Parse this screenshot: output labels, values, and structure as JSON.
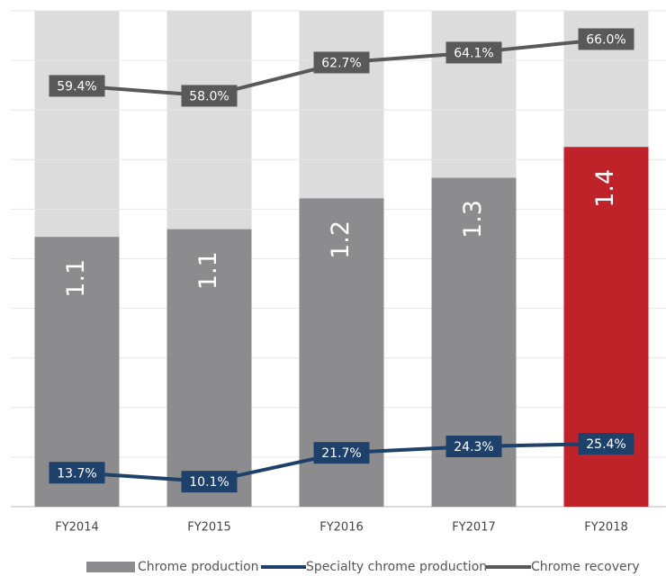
{
  "chart_data": {
    "type": "bar",
    "categories": [
      "FY2014",
      "FY2015",
      "FY2016",
      "FY2017",
      "FY2018"
    ],
    "ylim": [
      0,
      1.93
    ],
    "y2lim": [
      0,
      70
    ],
    "y3lim": [
      0,
      200
    ],
    "grid": true,
    "series": [
      {
        "name": "Chrome production",
        "type": "bar",
        "color": "#8c8c8e",
        "colors": [
          "#8c8c8e",
          "#8c8c8e",
          "#8c8c8e",
          "#8c8c8e",
          "#c0222a"
        ],
        "values": [
          1.05,
          1.08,
          1.2,
          1.28,
          1.4
        ],
        "value_labels": [
          "1.1",
          "1.1",
          "1.2",
          "1.3",
          "1.4"
        ]
      },
      {
        "name": "Specialty chrome production",
        "type": "line",
        "axis": "y3",
        "color": "#1d416a",
        "values": [
          13.7,
          10.1,
          21.7,
          24.3,
          25.4
        ],
        "value_labels": [
          "13.7%",
          "10.1%",
          "21.7%",
          "24.3%",
          "25.4%"
        ]
      },
      {
        "name": "Chrome recovery",
        "type": "line",
        "axis": "y2",
        "color": "#595959",
        "values": [
          59.4,
          58.0,
          62.7,
          64.1,
          66.0
        ],
        "value_labels": [
          "59.4%",
          "58.0%",
          "62.7%",
          "64.1%",
          "66.0%"
        ]
      }
    ]
  }
}
